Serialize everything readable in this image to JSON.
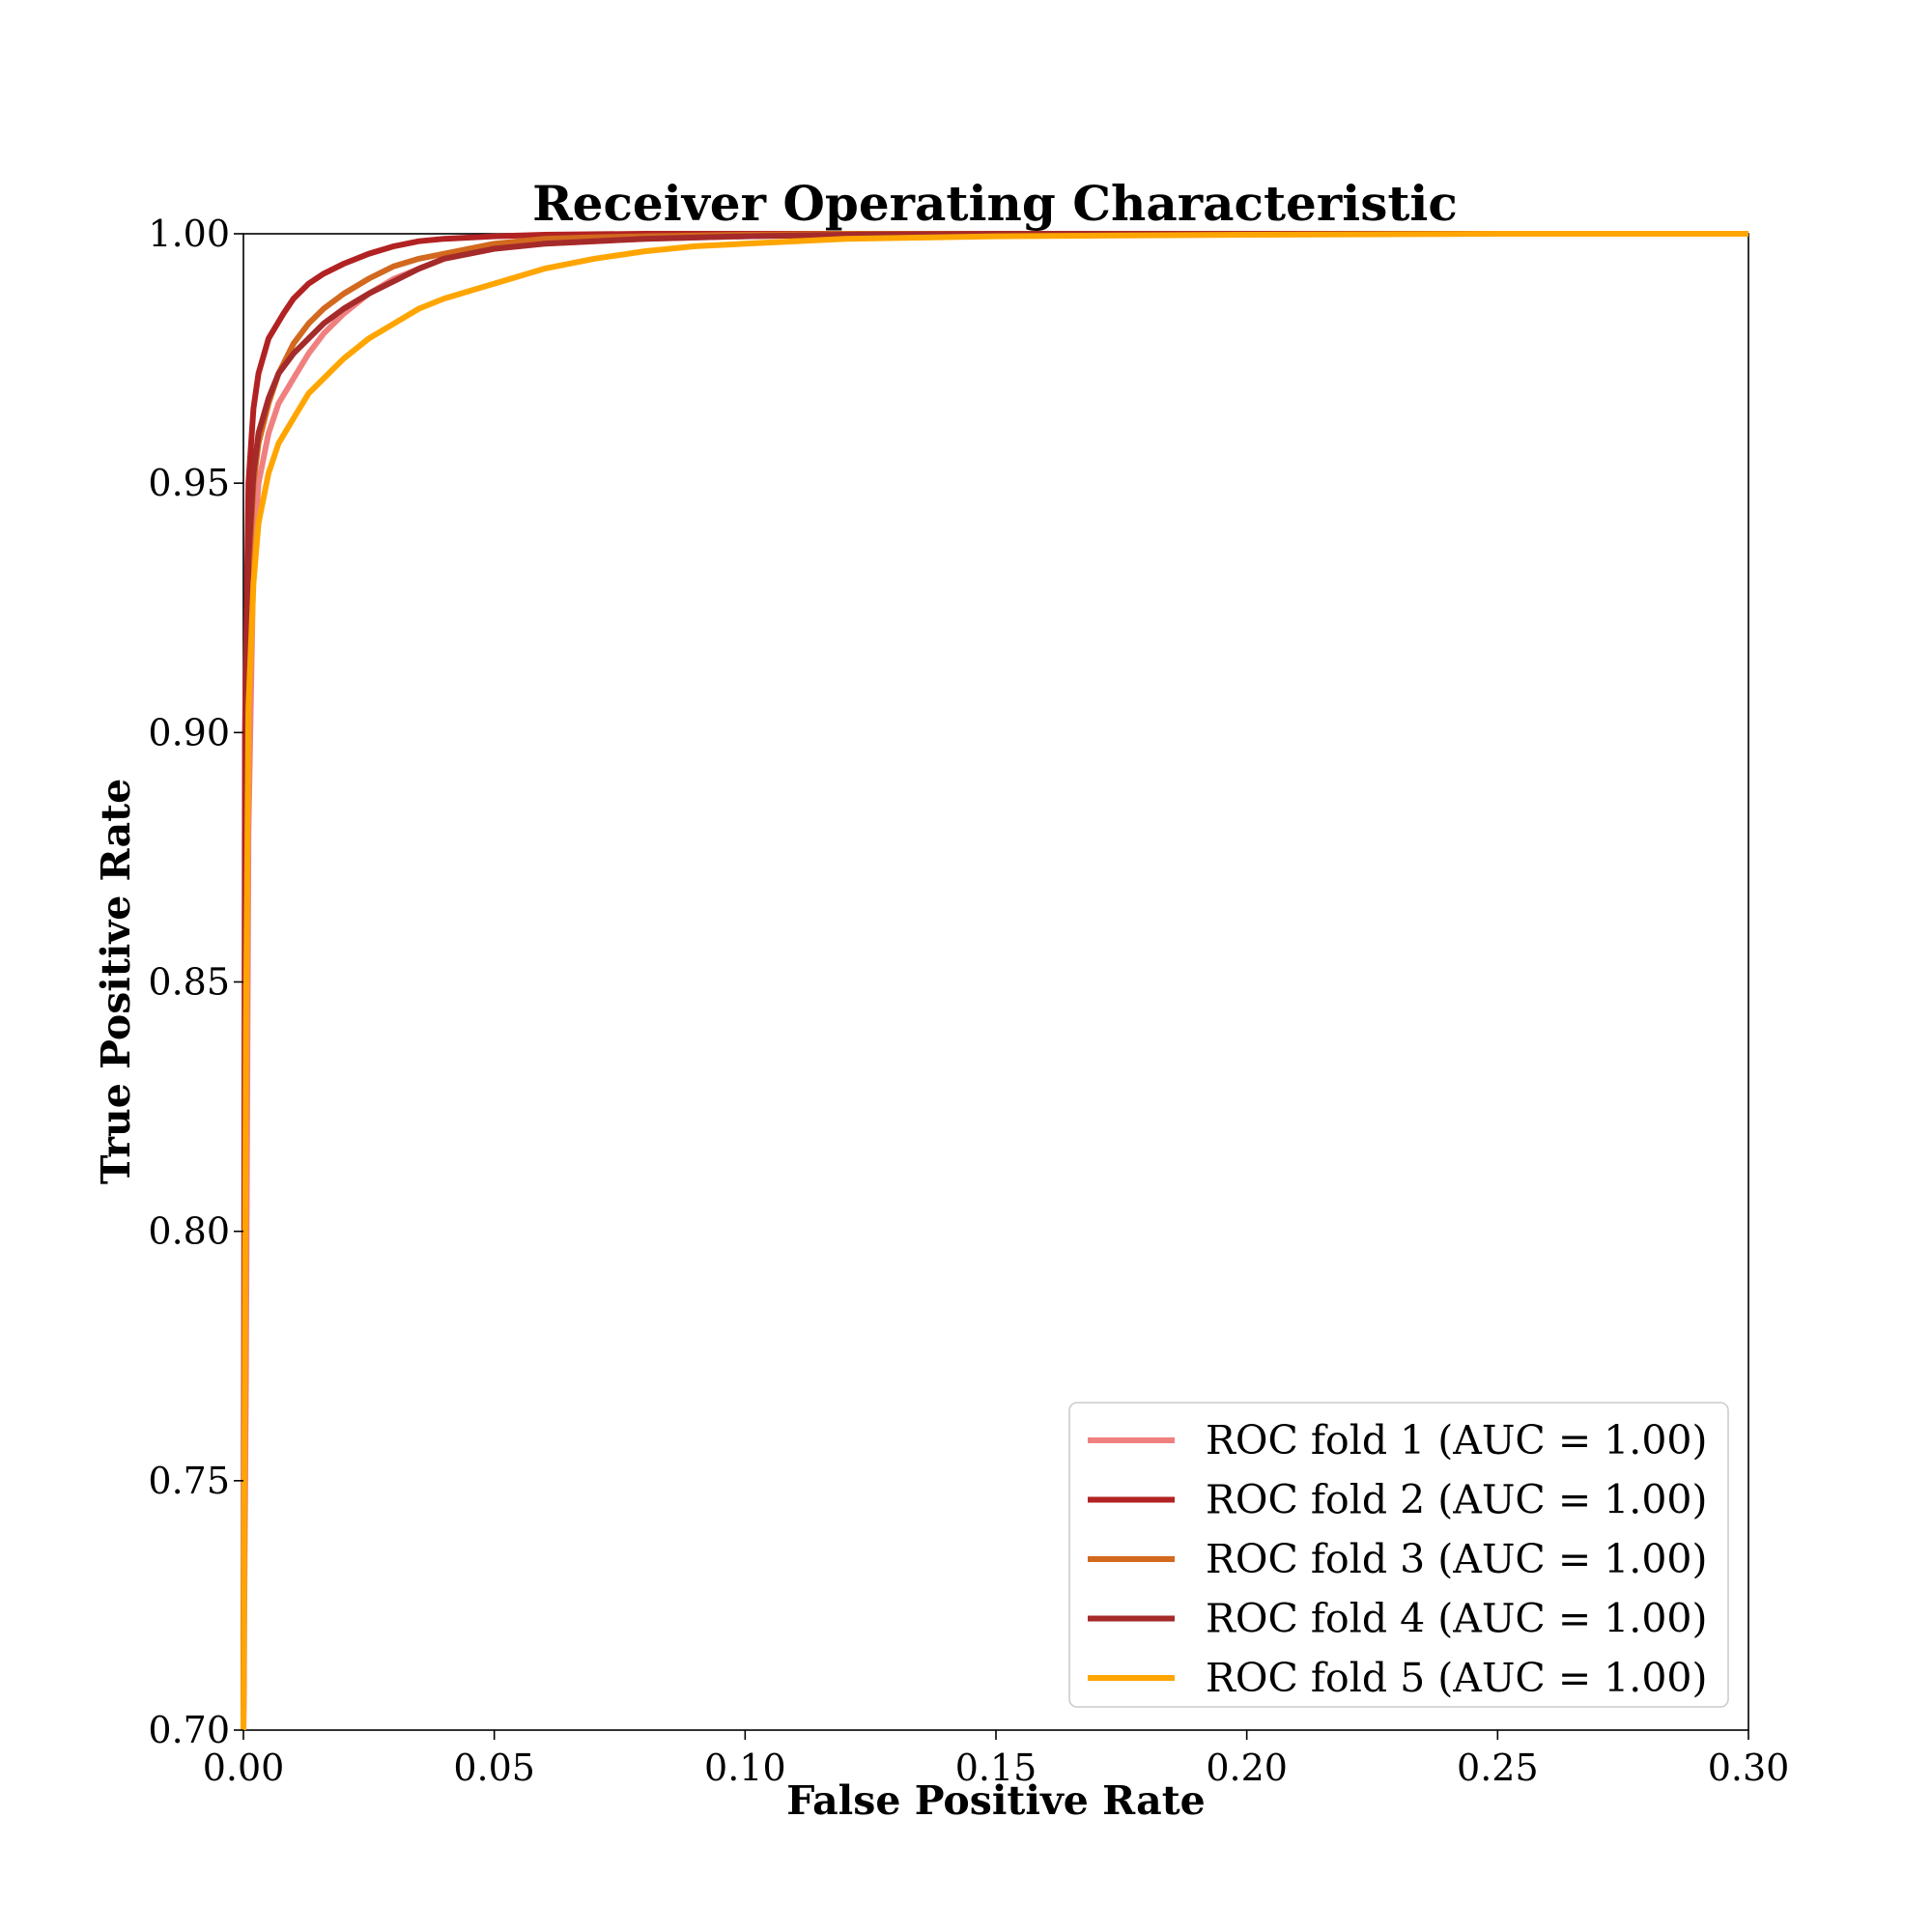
{
  "chart_data": {
    "type": "line",
    "title": "Receiver Operating Characteristic",
    "xlabel": "False Positive Rate",
    "ylabel": "True Positive Rate",
    "xlim": [
      0.0,
      0.3
    ],
    "ylim": [
      0.7,
      1.0
    ],
    "xticks": [
      0.0,
      0.05,
      0.1,
      0.15,
      0.2,
      0.25,
      0.3
    ],
    "xtick_labels": [
      "0.00",
      "0.05",
      "0.10",
      "0.15",
      "0.20",
      "0.25",
      "0.30"
    ],
    "yticks": [
      0.7,
      0.75,
      0.8,
      0.85,
      0.9,
      0.95,
      1.0
    ],
    "ytick_labels": [
      "0.70",
      "0.75",
      "0.80",
      "0.85",
      "0.90",
      "0.95",
      "1.00"
    ],
    "grid": false,
    "legend_position": "lower-right",
    "series": [
      {
        "name": "ROC fold 1 (AUC = 1.00)",
        "color": "#f08080",
        "x": [
          0,
          0.0005,
          0.001,
          0.002,
          0.003,
          0.005,
          0.007,
          0.01,
          0.013,
          0.016,
          0.02,
          0.025,
          0.03,
          0.035,
          0.04,
          0.05,
          0.06,
          0.07,
          0.08,
          0.1,
          0.12,
          0.15,
          0.2,
          0.25,
          0.3
        ],
        "y": [
          0.7,
          0.77,
          0.88,
          0.935,
          0.95,
          0.96,
          0.966,
          0.971,
          0.976,
          0.98,
          0.984,
          0.988,
          0.991,
          0.993,
          0.995,
          0.997,
          0.998,
          0.9985,
          0.999,
          0.9995,
          0.9998,
          1.0,
          1.0,
          1.0,
          1.0
        ]
      },
      {
        "name": "ROC fold 2 (AUC = 1.00)",
        "color": "#b22222",
        "x": [
          0,
          0.0003,
          0.001,
          0.002,
          0.003,
          0.005,
          0.008,
          0.01,
          0.013,
          0.016,
          0.02,
          0.025,
          0.03,
          0.035,
          0.04,
          0.05,
          0.06,
          0.08,
          0.1,
          0.15,
          0.2,
          0.25,
          0.3
        ],
        "y": [
          0.7,
          0.9,
          0.95,
          0.965,
          0.972,
          0.979,
          0.984,
          0.987,
          0.99,
          0.992,
          0.994,
          0.996,
          0.9975,
          0.9985,
          0.999,
          0.9995,
          0.9998,
          1.0,
          1.0,
          1.0,
          1.0,
          1.0,
          1.0
        ]
      },
      {
        "name": "ROC fold 3 (AUC = 1.00)",
        "color": "#d2691e",
        "x": [
          0,
          0.0005,
          0.001,
          0.002,
          0.003,
          0.005,
          0.007,
          0.01,
          0.013,
          0.016,
          0.02,
          0.025,
          0.03,
          0.035,
          0.04,
          0.05,
          0.06,
          0.07,
          0.08,
          0.1,
          0.12,
          0.15,
          0.2,
          0.25,
          0.3
        ],
        "y": [
          0.7,
          0.85,
          0.93,
          0.95,
          0.958,
          0.966,
          0.972,
          0.978,
          0.982,
          0.985,
          0.988,
          0.991,
          0.9935,
          0.995,
          0.996,
          0.998,
          0.999,
          0.9993,
          0.9995,
          0.9998,
          1.0,
          1.0,
          1.0,
          1.0,
          1.0
        ]
      },
      {
        "name": "ROC fold 4 (AUC = 1.00)",
        "color": "#a52a2a",
        "x": [
          0,
          0.0005,
          0.001,
          0.002,
          0.003,
          0.005,
          0.007,
          0.01,
          0.013,
          0.016,
          0.02,
          0.025,
          0.03,
          0.035,
          0.04,
          0.05,
          0.06,
          0.07,
          0.08,
          0.1,
          0.12,
          0.15,
          0.2,
          0.25,
          0.3
        ],
        "y": [
          0.7,
          0.88,
          0.935,
          0.952,
          0.96,
          0.967,
          0.972,
          0.976,
          0.979,
          0.982,
          0.985,
          0.988,
          0.9905,
          0.993,
          0.995,
          0.997,
          0.998,
          0.9985,
          0.999,
          0.9995,
          0.9998,
          1.0,
          1.0,
          1.0,
          1.0
        ]
      },
      {
        "name": "ROC fold 5 (AUC = 1.00)",
        "color": "#ffa500",
        "x": [
          0,
          0.0005,
          0.001,
          0.002,
          0.003,
          0.005,
          0.007,
          0.01,
          0.013,
          0.016,
          0.02,
          0.025,
          0.03,
          0.035,
          0.04,
          0.05,
          0.06,
          0.07,
          0.08,
          0.09,
          0.1,
          0.12,
          0.15,
          0.2,
          0.25,
          0.3
        ],
        "y": [
          0.7,
          0.84,
          0.905,
          0.93,
          0.942,
          0.952,
          0.958,
          0.963,
          0.968,
          0.971,
          0.975,
          0.979,
          0.982,
          0.985,
          0.987,
          0.99,
          0.993,
          0.995,
          0.9965,
          0.9975,
          0.998,
          0.999,
          0.9995,
          0.9998,
          1.0,
          1.0
        ]
      }
    ]
  }
}
